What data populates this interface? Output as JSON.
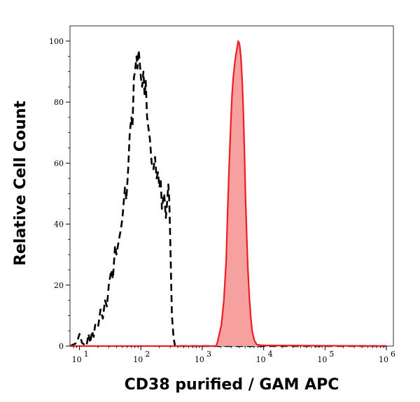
{
  "chart_data": {
    "type": "area",
    "title": "",
    "xlabel": "CD38 purified / GAM APC",
    "ylabel": "Relative Cell Count",
    "x_scale": "log",
    "xlim": [
      7,
      1300000
    ],
    "ylim": [
      0,
      105
    ],
    "x_ticks": [
      {
        "base": "10",
        "exp": "1",
        "value": 10
      },
      {
        "base": "10",
        "exp": "2",
        "value": 100
      },
      {
        "base": "10",
        "exp": "3",
        "value": 1000
      },
      {
        "base": "10",
        "exp": "4",
        "value": 10000
      },
      {
        "base": "10",
        "exp": "5",
        "value": 100000
      },
      {
        "base": "10",
        "exp": "6",
        "value": 1000000
      }
    ],
    "y_ticks": [
      "0",
      "20",
      "40",
      "60",
      "80",
      "100"
    ],
    "grid": false,
    "series": [
      {
        "style": "dashed",
        "color": "#000000",
        "fill": "none",
        "points": [
          [
            7,
            0
          ],
          [
            9,
            1
          ],
          [
            10,
            4
          ],
          [
            11,
            1
          ],
          [
            13,
            0
          ],
          [
            14,
            4
          ],
          [
            15,
            1
          ],
          [
            16,
            5
          ],
          [
            17,
            3
          ],
          [
            18,
            7
          ],
          [
            20,
            6
          ],
          [
            22,
            12
          ],
          [
            24,
            9
          ],
          [
            26,
            15
          ],
          [
            28,
            13
          ],
          [
            30,
            20
          ],
          [
            33,
            25
          ],
          [
            35,
            22
          ],
          [
            38,
            33
          ],
          [
            40,
            30
          ],
          [
            44,
            35
          ],
          [
            47,
            38
          ],
          [
            50,
            42
          ],
          [
            55,
            52
          ],
          [
            58,
            48
          ],
          [
            62,
            58
          ],
          [
            66,
            70
          ],
          [
            70,
            75
          ],
          [
            73,
            72
          ],
          [
            77,
            88
          ],
          [
            80,
            90
          ],
          [
            85,
            95
          ],
          [
            88,
            91
          ],
          [
            92,
            97
          ],
          [
            96,
            93
          ],
          [
            100,
            88
          ],
          [
            105,
            85
          ],
          [
            110,
            90
          ],
          [
            115,
            82
          ],
          [
            120,
            87
          ],
          [
            126,
            75
          ],
          [
            132,
            72
          ],
          [
            140,
            68
          ],
          [
            150,
            60
          ],
          [
            160,
            58
          ],
          [
            170,
            62
          ],
          [
            180,
            55
          ],
          [
            190,
            57
          ],
          [
            200,
            52
          ],
          [
            210,
            55
          ],
          [
            220,
            45
          ],
          [
            230,
            48
          ],
          [
            240,
            50
          ],
          [
            255,
            42
          ],
          [
            265,
            46
          ],
          [
            280,
            53
          ],
          [
            290,
            48
          ],
          [
            300,
            36
          ],
          [
            320,
            10
          ],
          [
            340,
            3
          ],
          [
            360,
            0
          ],
          [
            1000000,
            0
          ]
        ]
      },
      {
        "style": "solid",
        "color": "#ee1c25",
        "fill": "#f6a0a0",
        "points": [
          [
            7,
            0
          ],
          [
            1700,
            0
          ],
          [
            1850,
            3
          ],
          [
            2050,
            7
          ],
          [
            2250,
            15
          ],
          [
            2450,
            28
          ],
          [
            2600,
            45
          ],
          [
            2750,
            60
          ],
          [
            2900,
            72
          ],
          [
            3050,
            82
          ],
          [
            3200,
            88
          ],
          [
            3350,
            92
          ],
          [
            3500,
            95
          ],
          [
            3700,
            98
          ],
          [
            3850,
            100
          ],
          [
            4050,
            99
          ],
          [
            4250,
            95
          ],
          [
            4450,
            88
          ],
          [
            4650,
            78
          ],
          [
            4850,
            65
          ],
          [
            5050,
            50
          ],
          [
            5300,
            36
          ],
          [
            5550,
            25
          ],
          [
            5850,
            16
          ],
          [
            6150,
            10
          ],
          [
            6500,
            5
          ],
          [
            7000,
            2
          ],
          [
            7700,
            0.5
          ],
          [
            9000,
            0.3
          ],
          [
            11000,
            0.2
          ],
          [
            1000000,
            0
          ]
        ]
      }
    ]
  }
}
